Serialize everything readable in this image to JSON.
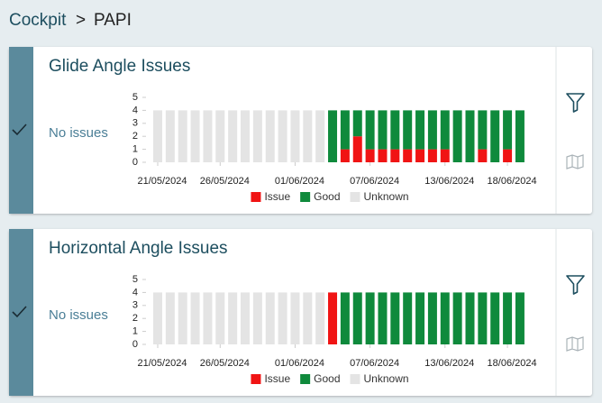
{
  "breadcrumb": {
    "root": "Cockpit",
    "separator": ">",
    "current": "PAPI"
  },
  "panels": [
    {
      "status": "No issues"
    },
    {
      "status": "No issues"
    }
  ],
  "chart_data": [
    {
      "type": "bar",
      "stacked": true,
      "title": "Glide Angle Issues",
      "categories": [
        "21/05/2024",
        null,
        null,
        null,
        null,
        "26/05/2024",
        null,
        null,
        null,
        null,
        null,
        "01/06/2024",
        null,
        null,
        null,
        null,
        null,
        "07/06/2024",
        null,
        null,
        null,
        null,
        null,
        "13/06/2024",
        null,
        null,
        null,
        null,
        "18/06/2024",
        null
      ],
      "series": [
        {
          "name": "Issue",
          "color": "#f01414",
          "values": [
            0,
            0,
            0,
            0,
            0,
            0,
            0,
            0,
            0,
            0,
            0,
            0,
            0,
            0,
            0,
            1,
            2,
            1,
            1,
            1,
            1,
            1,
            1,
            1,
            0,
            0,
            1,
            0,
            1,
            0
          ]
        },
        {
          "name": "Good",
          "color": "#0f8a3c",
          "values": [
            0,
            0,
            0,
            0,
            0,
            0,
            0,
            0,
            0,
            0,
            0,
            0,
            0,
            0,
            4,
            3,
            2,
            3,
            3,
            3,
            3,
            3,
            3,
            3,
            4,
            4,
            3,
            4,
            3,
            4
          ]
        },
        {
          "name": "Unknown",
          "color": "#e4e4e4",
          "values": [
            4,
            4,
            4,
            4,
            4,
            4,
            4,
            4,
            4,
            4,
            4,
            4,
            4,
            4,
            0,
            0,
            0,
            0,
            0,
            0,
            0,
            0,
            0,
            0,
            0,
            0,
            0,
            0,
            0,
            0
          ]
        }
      ],
      "ylim": [
        0,
        5
      ],
      "yticks": [
        0,
        1,
        2,
        3,
        4,
        5
      ]
    },
    {
      "type": "bar",
      "stacked": true,
      "title": "Horizontal Angle Issues",
      "categories": [
        "21/05/2024",
        null,
        null,
        null,
        null,
        "26/05/2024",
        null,
        null,
        null,
        null,
        null,
        "01/06/2024",
        null,
        null,
        null,
        null,
        null,
        "07/06/2024",
        null,
        null,
        null,
        null,
        null,
        "13/06/2024",
        null,
        null,
        null,
        null,
        "18/06/2024",
        null
      ],
      "series": [
        {
          "name": "Issue",
          "color": "#f01414",
          "values": [
            0,
            0,
            0,
            0,
            0,
            0,
            0,
            0,
            0,
            0,
            0,
            0,
            0,
            0,
            4,
            0,
            0,
            0,
            0,
            0,
            0,
            0,
            0,
            0,
            0,
            0,
            0,
            0,
            0,
            0
          ]
        },
        {
          "name": "Good",
          "color": "#0f8a3c",
          "values": [
            0,
            0,
            0,
            0,
            0,
            0,
            0,
            0,
            0,
            0,
            0,
            0,
            0,
            0,
            0,
            4,
            4,
            4,
            4,
            4,
            4,
            4,
            4,
            4,
            4,
            4,
            4,
            4,
            4,
            4
          ]
        },
        {
          "name": "Unknown",
          "color": "#e4e4e4",
          "values": [
            4,
            4,
            4,
            4,
            4,
            4,
            4,
            4,
            4,
            4,
            4,
            4,
            4,
            4,
            0,
            0,
            0,
            0,
            0,
            0,
            0,
            0,
            0,
            0,
            0,
            0,
            0,
            0,
            0,
            0
          ]
        }
      ],
      "ylim": [
        0,
        5
      ],
      "yticks": [
        0,
        1,
        2,
        3,
        4,
        5
      ]
    }
  ]
}
